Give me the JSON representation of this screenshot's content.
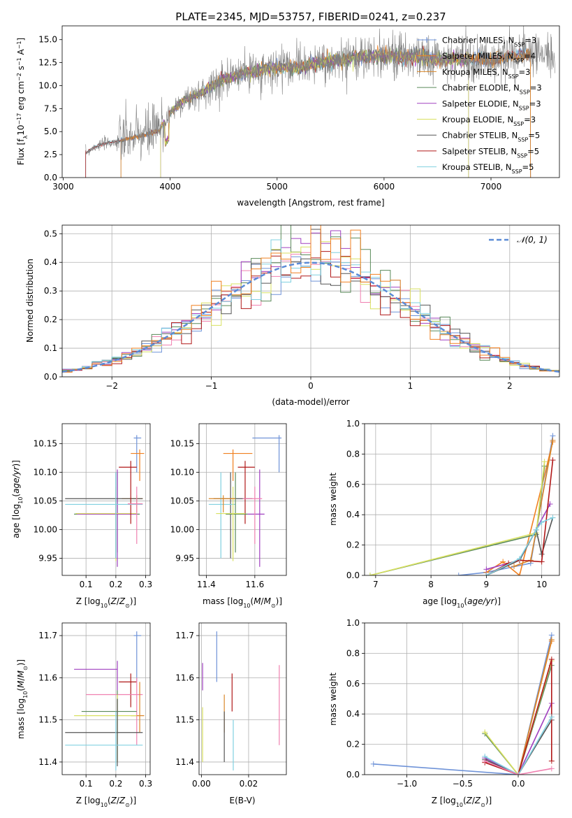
{
  "page_title": "PLATE=2345, MJD=53757, FIBERID=0241, z=0.237",
  "colors": {
    "Chabrier MILES": "#6f93d8",
    "Salpeter MILES": "#f08020",
    "Kroupa MILES": "#d9872a",
    "Chabrier ELODIE": "#5a8a5a",
    "Salpeter ELODIE": "#a040c0",
    "Kroupa ELODIE": "#d8e060",
    "Chabrier STELIB": "#555555",
    "Salpeter STELIB": "#b01818",
    "Kroupa STELIB": "#80d0e0",
    "pink": "#f080b0"
  },
  "chart_data": [
    {
      "id": "spectrum",
      "type": "line",
      "title": "PLATE=2345, MJD=53757, FIBERID=0241, z=0.237",
      "xlabel": "wavelength [Angstrom, rest frame]",
      "ylabel": "Flux [f_λ 10^-17 erg cm^-2 s^-1 A^-1]",
      "xlim": [
        2990,
        7640
      ],
      "ylim": [
        0,
        16.5
      ],
      "xticks": [
        3000,
        4000,
        5000,
        6000,
        7000
      ],
      "yticks": [
        0.0,
        2.5,
        5.0,
        7.5,
        10.0,
        12.5,
        15.0
      ],
      "grid": false,
      "legend_position": "top-right",
      "legend": [
        {
          "label": "Chabrier MILES, N",
          "sub": "SSP",
          "tail": "=3"
        },
        {
          "label": "Salpeter MILES, N",
          "sub": "SSP",
          "tail": "=4"
        },
        {
          "label": "Kroupa MILES, N",
          "sub": "SSP",
          "tail": "=3"
        },
        {
          "label": "Chabrier ELODIE, N",
          "sub": "SSP",
          "tail": "=3"
        },
        {
          "label": "Salpeter ELODIE, N",
          "sub": "SSP",
          "tail": "=3"
        },
        {
          "label": "Kroupa ELODIE, N",
          "sub": "SSP",
          "tail": "=3"
        },
        {
          "label": "Chabrier STELIB, N",
          "sub": "SSP",
          "tail": "=5"
        },
        {
          "label": "Salpeter STELIB, N",
          "sub": "SSP",
          "tail": "=5"
        },
        {
          "label": "Kroupa STELIB, N",
          "sub": "SSP",
          "tail": "=5"
        }
      ],
      "continuum_x": [
        3200,
        3300,
        3400,
        3500,
        3600,
        3700,
        3800,
        3900,
        4000,
        4100,
        4200,
        4300,
        4400,
        4500,
        4600,
        4700,
        4800,
        4900,
        5000,
        5100,
        5200,
        5300,
        5400,
        5500,
        5600,
        5700,
        5800,
        5900,
        6000,
        6100,
        6200,
        6300,
        6400,
        6500,
        6600,
        6700,
        6800,
        6900,
        7000,
        7100,
        7200,
        7300,
        7400
      ],
      "continuum_y": [
        2.6,
        3.4,
        3.7,
        3.9,
        4.2,
        4.5,
        4.7,
        5.2,
        7.0,
        8.2,
        8.7,
        9.3,
        10.0,
        10.7,
        10.9,
        11.4,
        11.5,
        11.9,
        12.0,
        12.1,
        11.9,
        12.2,
        12.5,
        12.8,
        12.7,
        13.0,
        13.1,
        13.3,
        13.2,
        13.2,
        13.2,
        13.1,
        13.0,
        12.9,
        12.8,
        12.9,
        12.9,
        12.9,
        12.8,
        12.9,
        13.2,
        13.4,
        13.3
      ]
    },
    {
      "id": "residuals",
      "type": "histogram",
      "xlabel": "(data-model)/error",
      "ylabel": "Normed distribution",
      "xlim": [
        -2.5,
        2.5
      ],
      "ylim": [
        0,
        0.53
      ],
      "xticks": [
        -2,
        -1,
        0,
        1,
        2
      ],
      "yticks": [
        0.0,
        0.1,
        0.2,
        0.3,
        0.4,
        0.5
      ],
      "grid": true,
      "legend_position": "top-right",
      "legend": [
        "𝒩(0, 1)"
      ],
      "bin_width": 0.1,
      "gaussian_mean": 0,
      "gaussian_sigma": 1
    },
    {
      "id": "age_vs_Z",
      "type": "scatter",
      "xlabel": "Z [log10(Z/Z⊙)]",
      "ylabel": "age [log10(age/yr)]",
      "xlim": [
        0.02,
        0.315
      ],
      "ylim": [
        9.92,
        10.185
      ],
      "xticks": [
        0.1,
        0.2,
        0.3
      ],
      "yticks": [
        9.95,
        10.0,
        10.05,
        10.1,
        10.15
      ],
      "grid": true,
      "points": [
        {
          "c": "Chabrier MILES",
          "x": 0.27,
          "xe": [
            0.26,
            0.285
          ],
          "y": 10.16,
          "ye": [
            10.1,
            10.165
          ]
        },
        {
          "c": "Salpeter MILES",
          "x": 0.28,
          "xe": [
            0.25,
            0.295
          ],
          "y": 10.133,
          "ye": [
            10.085,
            10.14
          ]
        },
        {
          "c": "Kroupa MILES",
          "x": 0.27,
          "xe": [
            0.22,
            0.29
          ],
          "y": 10.054,
          "ye": [
            10.03,
            10.06
          ]
        },
        {
          "c": "Chabrier ELODIE",
          "x": 0.205,
          "xe": [
            0.06,
            0.28
          ],
          "y": 10.027,
          "ye": [
            9.96,
            10.1
          ]
        },
        {
          "c": "Salpeter ELODIE",
          "x": 0.205,
          "xe": [
            0.07,
            0.27
          ],
          "y": 10.027,
          "ye": [
            9.935,
            10.105
          ]
        },
        {
          "c": "Kroupa ELODIE",
          "x": 0.2,
          "xe": [
            0.065,
            0.27
          ],
          "y": 10.028,
          "ye": [
            9.945,
            10.075
          ]
        },
        {
          "c": "Chabrier STELIB",
          "x": 0.2,
          "xe": [
            0.03,
            0.29
          ],
          "y": 10.054,
          "ye": [
            9.95,
            10.1
          ]
        },
        {
          "c": "Salpeter STELIB",
          "x": 0.25,
          "xe": [
            0.21,
            0.27
          ],
          "y": 10.109,
          "ye": [
            10.01,
            10.12
          ]
        },
        {
          "c": "Kroupa STELIB",
          "x": 0.2,
          "xe": [
            0.03,
            0.29
          ],
          "y": 10.044,
          "ye": [
            9.95,
            10.1
          ]
        },
        {
          "c": "pink",
          "x": 0.27,
          "xe": [
            0.24,
            0.29
          ],
          "y": 10.045,
          "ye": [
            9.975,
            10.075
          ]
        }
      ]
    },
    {
      "id": "age_vs_mass",
      "type": "scatter",
      "xlabel": "mass [log10(M/M⊙)]",
      "ylabel": "",
      "xlim": [
        11.37,
        11.73
      ],
      "ylim": [
        9.92,
        10.185
      ],
      "xticks": [
        11.4,
        11.6
      ],
      "yticks": [
        9.95,
        10.0,
        10.05,
        10.1,
        10.15
      ],
      "grid": true,
      "points": [
        {
          "c": "Chabrier MILES",
          "x": 11.7,
          "xe": [
            11.59,
            11.71
          ],
          "y": 10.16,
          "ye": [
            10.1,
            10.165
          ]
        },
        {
          "c": "Salpeter MILES",
          "x": 11.51,
          "xe": [
            11.47,
            11.59
          ],
          "y": 10.133,
          "ye": [
            10.085,
            10.14
          ]
        },
        {
          "c": "Chabrier STELIB",
          "x": 11.5,
          "xe": [
            11.43,
            11.59
          ],
          "y": 10.054,
          "ye": [
            9.95,
            10.1
          ]
        },
        {
          "c": "Salpeter STELIB",
          "x": 11.56,
          "xe": [
            11.53,
            11.6
          ],
          "y": 10.109,
          "ye": [
            10.01,
            10.12
          ]
        },
        {
          "c": "Kroupa STELIB",
          "x": 11.46,
          "xe": [
            11.41,
            11.52
          ],
          "y": 10.044,
          "ye": [
            9.95,
            10.1
          ]
        },
        {
          "c": "Chabrier ELODIE",
          "x": 11.52,
          "xe": [
            11.48,
            11.57
          ],
          "y": 10.027,
          "ye": [
            9.96,
            10.1
          ]
        },
        {
          "c": "Kroupa ELODIE",
          "x": 11.51,
          "xe": [
            11.44,
            11.56
          ],
          "y": 10.028,
          "ye": [
            9.945,
            10.075
          ]
        },
        {
          "c": "Salpeter ELODIE",
          "x": 11.62,
          "xe": [
            11.57,
            11.64
          ],
          "y": 10.027,
          "ye": [
            9.935,
            10.105
          ]
        },
        {
          "c": "pink",
          "x": 11.6,
          "xe": [
            11.55,
            11.63
          ],
          "y": 10.054,
          "ye": [
            9.975,
            10.075
          ]
        },
        {
          "c": "Kroupa MILES",
          "x": 11.47,
          "xe": [
            11.41,
            11.52
          ],
          "y": 10.054,
          "ye": [
            10.03,
            10.06
          ]
        }
      ]
    },
    {
      "id": "weight_vs_age",
      "type": "line",
      "xlabel": "age [log10(age/yr)]",
      "ylabel": "mass weight",
      "xlim": [
        6.8,
        10.32
      ],
      "ylim": [
        0,
        1.0
      ],
      "xticks": [
        7,
        8,
        9,
        10
      ],
      "yticks": [
        0.0,
        0.2,
        0.4,
        0.6,
        0.8,
        1.0
      ],
      "grid": true,
      "series": [
        {
          "c": "Chabrier MILES",
          "x": [
            8.5,
            9.0,
            9.8,
            10.2
          ],
          "y": [
            0.0,
            0.02,
            0.08,
            0.92
          ]
        },
        {
          "c": "Salpeter MILES",
          "x": [
            9.0,
            9.3,
            9.6,
            10.2
          ],
          "y": [
            0.02,
            0.09,
            0.0,
            0.88
          ]
        },
        {
          "c": "Kroupa MILES",
          "x": [
            9.5,
            9.8,
            10.2
          ],
          "y": [
            0.06,
            0.1,
            0.89
          ]
        },
        {
          "c": "Chabrier ELODIE",
          "x": [
            6.9,
            9.9,
            10.05
          ],
          "y": [
            0.0,
            0.27,
            0.72
          ]
        },
        {
          "c": "Salpeter ELODIE",
          "x": [
            9.0,
            9.6,
            10.15
          ],
          "y": [
            0.04,
            0.1,
            0.47
          ]
        },
        {
          "c": "Kroupa ELODIE",
          "x": [
            6.9,
            9.9,
            10.05
          ],
          "y": [
            0.0,
            0.28,
            0.75
          ]
        },
        {
          "c": "Chabrier STELIB",
          "x": [
            9.0,
            9.6,
            9.9,
            10.0,
            10.2
          ],
          "y": [
            0.0,
            0.1,
            0.3,
            0.14,
            0.38
          ]
        },
        {
          "c": "Salpeter STELIB",
          "x": [
            9.0,
            9.4,
            9.6,
            10.0,
            10.2
          ],
          "y": [
            0.0,
            0.08,
            0.1,
            0.09,
            0.76
          ]
        },
        {
          "c": "Kroupa STELIB",
          "x": [
            9.0,
            9.6,
            9.9,
            10.0,
            10.2
          ],
          "y": [
            0.0,
            0.11,
            0.3,
            0.35,
            0.38
          ]
        }
      ]
    },
    {
      "id": "mass_vs_Z",
      "type": "scatter",
      "xlabel": "Z [log10(Z/Z⊙)]",
      "ylabel": "mass [log10(M/M⊙)]",
      "xlim": [
        0.02,
        0.315
      ],
      "ylim": [
        11.37,
        11.73
      ],
      "xticks": [
        0.1,
        0.2,
        0.3
      ],
      "yticks": [
        11.4,
        11.5,
        11.6,
        11.7
      ],
      "grid": true,
      "points": [
        {
          "c": "Chabrier MILES",
          "x": 0.27,
          "xe": [
            0.26,
            0.285
          ],
          "y": 11.7,
          "ye": [
            11.59,
            11.71
          ]
        },
        {
          "c": "Salpeter ELODIE",
          "x": 0.205,
          "xe": [
            0.06,
            0.205
          ],
          "y": 11.62,
          "ye": [
            11.57,
            11.64
          ]
        },
        {
          "c": "Salpeter STELIB",
          "x": 0.25,
          "xe": [
            0.21,
            0.27
          ],
          "y": 11.59,
          "ye": [
            11.53,
            11.61
          ]
        },
        {
          "c": "pink",
          "x": 0.27,
          "xe": [
            0.1,
            0.29
          ],
          "y": 11.56,
          "ye": [
            11.44,
            11.6
          ]
        },
        {
          "c": "Chabrier ELODIE",
          "x": 0.205,
          "xe": [
            0.085,
            0.27
          ],
          "y": 11.52,
          "ye": [
            11.4,
            11.57
          ]
        },
        {
          "c": "Kroupa MILES",
          "x": 0.28,
          "xe": [
            0.25,
            0.295
          ],
          "y": 11.51,
          "ye": [
            11.47,
            11.59
          ]
        },
        {
          "c": "Kroupa ELODIE",
          "x": 0.205,
          "xe": [
            0.06,
            0.27
          ],
          "y": 11.51,
          "ye": [
            11.4,
            11.56
          ]
        },
        {
          "c": "Chabrier STELIB",
          "x": 0.205,
          "xe": [
            0.03,
            0.29
          ],
          "y": 11.47,
          "ye": [
            11.39,
            11.55
          ]
        },
        {
          "c": "Kroupa STELIB",
          "x": 0.2,
          "xe": [
            0.03,
            0.29
          ],
          "y": 11.44,
          "ye": [
            11.38,
            11.52
          ]
        }
      ]
    },
    {
      "id": "mass_vs_ebv",
      "type": "scatter",
      "xlabel": "E(B-V)",
      "ylabel": "",
      "xlim": [
        -0.001,
        0.036
      ],
      "ylim": [
        11.37,
        11.73
      ],
      "xticks": [
        0.0,
        0.02
      ],
      "yticks": [
        11.4,
        11.5,
        11.6,
        11.7
      ],
      "grid": true,
      "points": [
        {
          "c": "Chabrier MILES",
          "x": 0.0065,
          "y": 11.65,
          "ye": [
            11.59,
            11.71
          ]
        },
        {
          "c": "Salpeter ELODIE",
          "x": 0.0005,
          "y": 11.6,
          "ye": [
            11.57,
            11.635
          ]
        },
        {
          "c": "Salpeter STELIB",
          "x": 0.013,
          "y": 11.57,
          "ye": [
            11.52,
            11.61
          ]
        },
        {
          "c": "pink",
          "x": 0.033,
          "y": 11.53,
          "ye": [
            11.44,
            11.63
          ]
        },
        {
          "c": "Kroupa MILES",
          "x": 0.0097,
          "y": 11.52,
          "ye": [
            11.47,
            11.56
          ]
        },
        {
          "c": "Chabrier STELIB",
          "x": 0.0097,
          "y": 11.46,
          "ye": [
            11.4,
            11.52
          ]
        },
        {
          "c": "Kroupa ELODIE",
          "x": 0.0005,
          "y": 11.47,
          "ye": [
            11.4,
            11.53
          ]
        },
        {
          "c": "Kroupa STELIB",
          "x": 0.0135,
          "y": 11.42,
          "ye": [
            11.38,
            11.5
          ]
        }
      ]
    },
    {
      "id": "weight_vs_Z",
      "type": "line",
      "xlabel": "Z [log10(Z/Z⊙)]",
      "ylabel": "mass weight",
      "xlim": [
        -1.38,
        0.37
      ],
      "ylim": [
        0,
        1.0
      ],
      "xticks": [
        -1.0,
        -0.5,
        0.0
      ],
      "yticks": [
        0.0,
        0.2,
        0.4,
        0.6,
        0.8,
        1.0
      ],
      "grid": true,
      "series": [
        {
          "c": "Chabrier MILES",
          "x": [
            -1.3,
            0.0,
            0.3
          ],
          "y": [
            0.07,
            0.0,
            0.92
          ]
        },
        {
          "c": "Salpeter MILES",
          "x": [
            0.0,
            0.3
          ],
          "y": [
            0.0,
            0.88
          ]
        },
        {
          "c": "Kroupa MILES",
          "x": [
            0.0,
            0.3
          ],
          "y": [
            0.0,
            0.89
          ]
        },
        {
          "c": "Chabrier ELODIE",
          "x": [
            -0.3,
            0.0,
            0.3
          ],
          "y": [
            0.27,
            0.0,
            0.72
          ]
        },
        {
          "c": "Salpeter ELODIE",
          "x": [
            -0.3,
            0.0,
            0.3
          ],
          "y": [
            0.11,
            0.0,
            0.47
          ]
        },
        {
          "c": "Kroupa ELODIE",
          "x": [
            -0.3,
            0.0,
            0.3
          ],
          "y": [
            0.28,
            0.0,
            0.75
          ]
        },
        {
          "c": "Chabrier STELIB",
          "x": [
            -0.3,
            0.0,
            0.3
          ],
          "y": [
            0.1,
            0.0,
            0.36
          ]
        },
        {
          "c": "Salpeter STELIB",
          "x": [
            -0.3,
            0.0,
            0.3,
            0.3
          ],
          "y": [
            0.08,
            0.0,
            0.76,
            0.09
          ]
        },
        {
          "c": "Kroupa STELIB",
          "x": [
            -0.3,
            0.0,
            0.3
          ],
          "y": [
            0.12,
            0.0,
            0.38
          ]
        },
        {
          "c": "pink",
          "x": [
            -0.3,
            0.0,
            0.3
          ],
          "y": [
            0.09,
            0.0,
            0.04
          ]
        }
      ]
    }
  ]
}
